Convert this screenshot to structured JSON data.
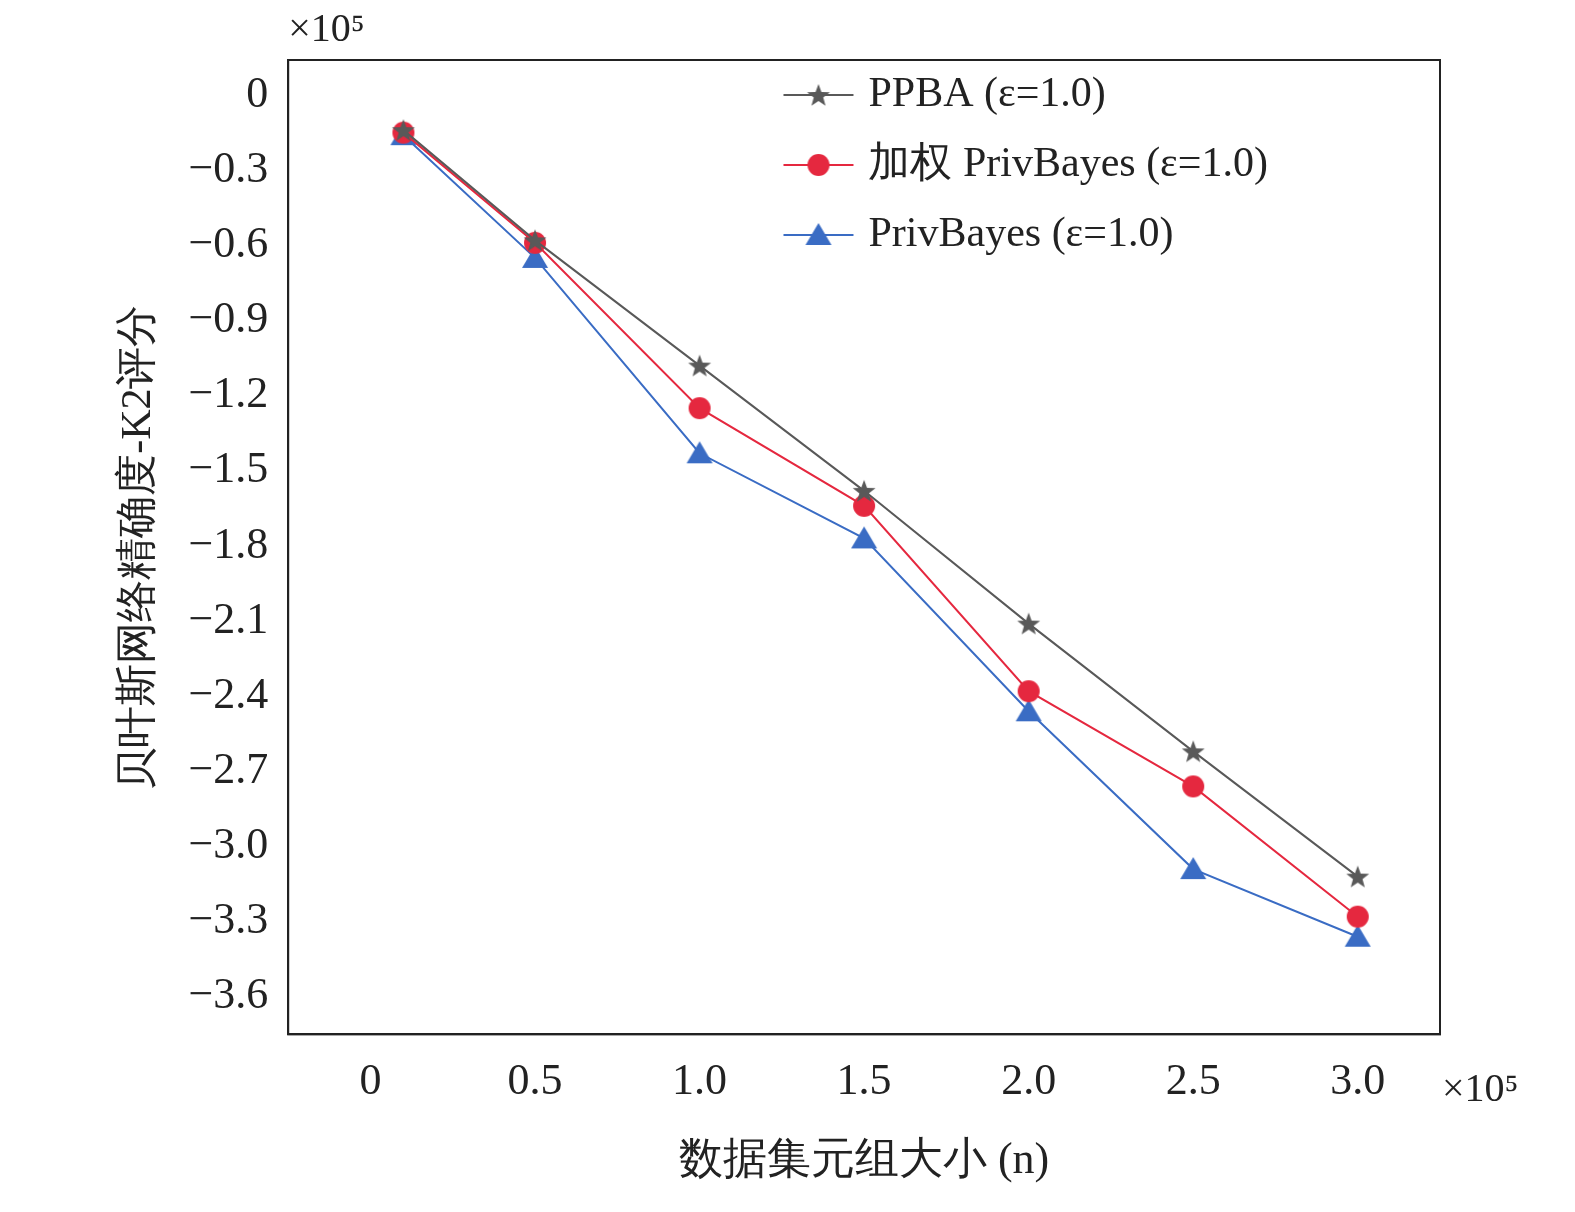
{
  "chart_data": {
    "type": "line",
    "x_label": "数据集元组大小 (n)",
    "y_label": "贝叶斯网络精确度-K2评分",
    "annotations": [
      {
        "text": "×10⁵",
        "axis": "y"
      },
      {
        "text": "×10⁵",
        "axis": "x"
      }
    ],
    "x": [
      0.1,
      0.5,
      1.0,
      1.5,
      2.0,
      2.5,
      3.0
    ],
    "series": [
      {
        "name": "PPBA (ε=1.0)",
        "color": "#595959",
        "marker": "star",
        "values": [
          -0.14,
          -0.58,
          -1.08,
          -1.58,
          -2.11,
          -2.62,
          -3.12
        ]
      },
      {
        "name": "加权 PrivBayes (ε=1.0)",
        "color": "#e5283f",
        "marker": "circle",
        "values": [
          -0.15,
          -0.59,
          -1.25,
          -1.64,
          -2.38,
          -2.76,
          -3.28
        ]
      },
      {
        "name": "PrivBayes (ε=1.0)",
        "color": "#3a6cc4",
        "marker": "triangle",
        "values": [
          -0.16,
          -0.65,
          -1.43,
          -1.77,
          -2.46,
          -3.09,
          -3.36
        ]
      }
    ],
    "xlim": [
      -0.25,
      3.25
    ],
    "xticks": [
      0,
      0.5,
      {
        "value": 1,
        "label": "1.0"
      },
      1.5,
      {
        "value": 2,
        "label": "2.0"
      },
      2.5,
      {
        "value": 3,
        "label": "3.0"
      }
    ],
    "ylim": [
      -3.75,
      0.14
    ],
    "yticks": [
      {
        "value": -3.6,
        "label": "−3.6"
      },
      {
        "value": -3.3,
        "label": "−3.3"
      },
      {
        "value": -3,
        "label": "−3.0"
      },
      {
        "value": -2.7,
        "label": "−2.7"
      },
      {
        "value": -2.4,
        "label": "−2.4"
      },
      {
        "value": -2.1,
        "label": "−2.1"
      },
      {
        "value": -1.8,
        "label": "−1.8"
      },
      {
        "value": -1.5,
        "label": "−1.5"
      },
      {
        "value": -1.2,
        "label": "−1.2"
      },
      {
        "value": -0.9,
        "label": "−0.9"
      },
      {
        "value": -0.6,
        "label": "−0.6"
      },
      {
        "value": -0.3,
        "label": "−0.3"
      },
      0
    ],
    "grid": false,
    "legend": "upper right"
  }
}
